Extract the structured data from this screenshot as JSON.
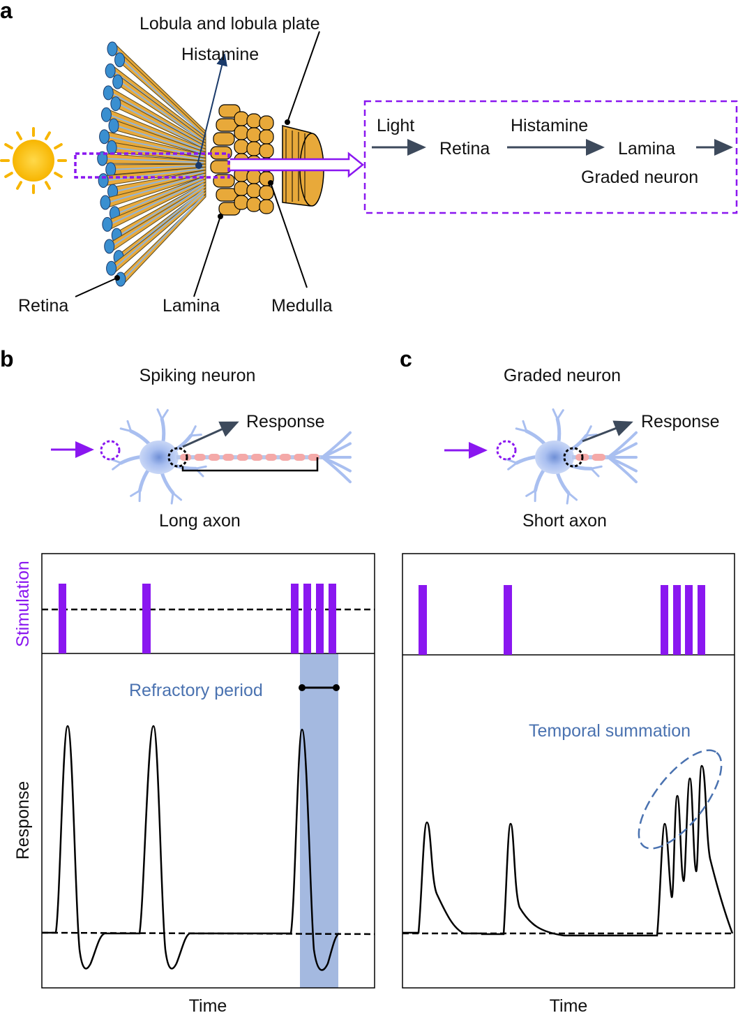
{
  "panel_a": {
    "label": "a",
    "lobula_label": "Lobula and lobula plate",
    "histamine_label": "Histamine",
    "retina_label": "Retina",
    "lamina_label": "Lamina",
    "medulla_label": "Medulla",
    "pathway": {
      "light": "Light",
      "retina": "Retina",
      "histamine": "Histamine",
      "lamina": "Lamina",
      "graded_neuron": "Graded neuron"
    }
  },
  "panel_b": {
    "label": "b",
    "title": "Spiking neuron",
    "response_label": "Response",
    "axon_label": "Long axon",
    "stimulation_axis": "Stimulation",
    "response_axis": "Response",
    "time_axis": "Time",
    "annotation": "Refractory period"
  },
  "panel_c": {
    "label": "c",
    "title": "Graded neuron",
    "response_label": "Response",
    "axon_label": "Short axon",
    "time_axis": "Time",
    "annotation": "Temporal summation"
  },
  "colors": {
    "stimulation": "#8a17f0",
    "annotation": "#4a72b0",
    "refractory_shade": "#a4b9e0",
    "eye_gold": "#e8a93a",
    "eye_blue": "#3a8fd0"
  }
}
